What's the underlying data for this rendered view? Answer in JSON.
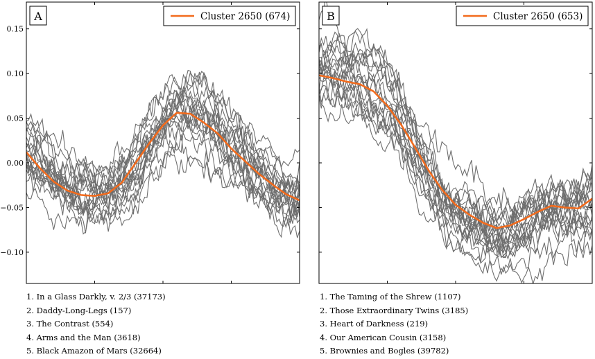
{
  "chart_data": [
    {
      "type": "line",
      "panel_label": "A",
      "xlim": [
        0,
        1
      ],
      "ylim": [
        -0.135,
        0.18
      ],
      "yticks": [
        -0.1,
        -0.05,
        0.0,
        0.05,
        0.1,
        0.15
      ],
      "ytick_labels": [
        "−0.10",
        "−0.05",
        "0.00",
        "0.05",
        "0.10",
        "0.15"
      ],
      "xticks": [
        0.25,
        0.5,
        0.75
      ],
      "grid": false,
      "legend_position": "top-right",
      "cluster": {
        "name": "Cluster 2650 (674)",
        "color": "#f26b1d",
        "x": [
          0,
          0.05,
          0.1,
          0.15,
          0.2,
          0.25,
          0.3,
          0.35,
          0.4,
          0.45,
          0.5,
          0.55,
          0.6,
          0.65,
          0.7,
          0.75,
          0.8,
          0.85,
          0.9,
          0.95,
          1.0
        ],
        "y": [
          0.012,
          -0.006,
          -0.021,
          -0.031,
          -0.036,
          -0.037,
          -0.034,
          -0.022,
          0.0,
          0.022,
          0.042,
          0.056,
          0.055,
          0.045,
          0.033,
          0.016,
          0.002,
          -0.012,
          -0.024,
          -0.035,
          -0.042
        ]
      },
      "members_count": 20,
      "member_color": "#6e6e6e",
      "books": [
        "1. In a Glass Darkly, v. 2/3 (37173)",
        "2. Daddy-Long-Legs (157)",
        "3. The Contrast (554)",
        "4. Arms and the Man (3618)",
        "5. Black Amazon of Mars (32664)"
      ]
    },
    {
      "type": "line",
      "panel_label": "B",
      "xlim": [
        0,
        1
      ],
      "ylim": [
        -0.135,
        0.18
      ],
      "yticks": [
        -0.1,
        -0.05,
        0.0,
        0.05,
        0.1,
        0.15
      ],
      "xticks": [
        0.25,
        0.5,
        0.75
      ],
      "grid": false,
      "legend_position": "top-right",
      "cluster": {
        "name": "Cluster 2650 (653)",
        "color": "#f26b1d",
        "x": [
          0,
          0.05,
          0.1,
          0.15,
          0.2,
          0.25,
          0.3,
          0.35,
          0.4,
          0.45,
          0.5,
          0.55,
          0.6,
          0.65,
          0.7,
          0.75,
          0.8,
          0.85,
          0.9,
          0.95,
          1.0
        ],
        "y": [
          0.098,
          0.095,
          0.091,
          0.088,
          0.08,
          0.064,
          0.043,
          0.018,
          -0.008,
          -0.03,
          -0.047,
          -0.058,
          -0.067,
          -0.073,
          -0.07,
          -0.063,
          -0.055,
          -0.048,
          -0.05,
          -0.051,
          -0.04
        ]
      },
      "members_count": 20,
      "member_color": "#6e6e6e",
      "books": [
        "1. The Taming of the Shrew (1107)",
        "2. Those Extraordinary Twins (3185)",
        "3. Heart of Darkness (219)",
        "4. Our American Cousin (3158)",
        "5. Brownies and Bogles (39782)"
      ]
    }
  ]
}
